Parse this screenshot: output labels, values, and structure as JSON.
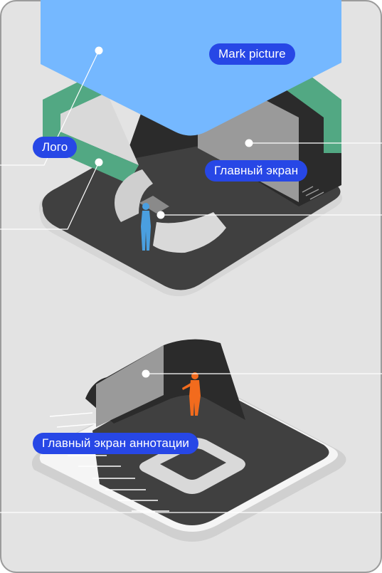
{
  "annotations": {
    "mark_picture": "Mark picture",
    "logo": "Лого",
    "main_screen": "Главный экран",
    "main_screen_annotations": "Главный экран аннотации"
  },
  "colors": {
    "card_background": "#e3e3e3",
    "card_border": "#9c9c9c",
    "sky_blue": "#75b8ff",
    "green": "#52a883",
    "floor_dark": "#404040",
    "wall_black": "#2b2b2b",
    "wall_grey": "#9a9a9a",
    "light_grey": "#d0d0d0",
    "person_blue": "#4a9fe0",
    "person_orange": "#f26b1d",
    "label_blue": "#2747e6"
  },
  "icons": [
    "person-blue-figure",
    "person-orange-figure"
  ]
}
